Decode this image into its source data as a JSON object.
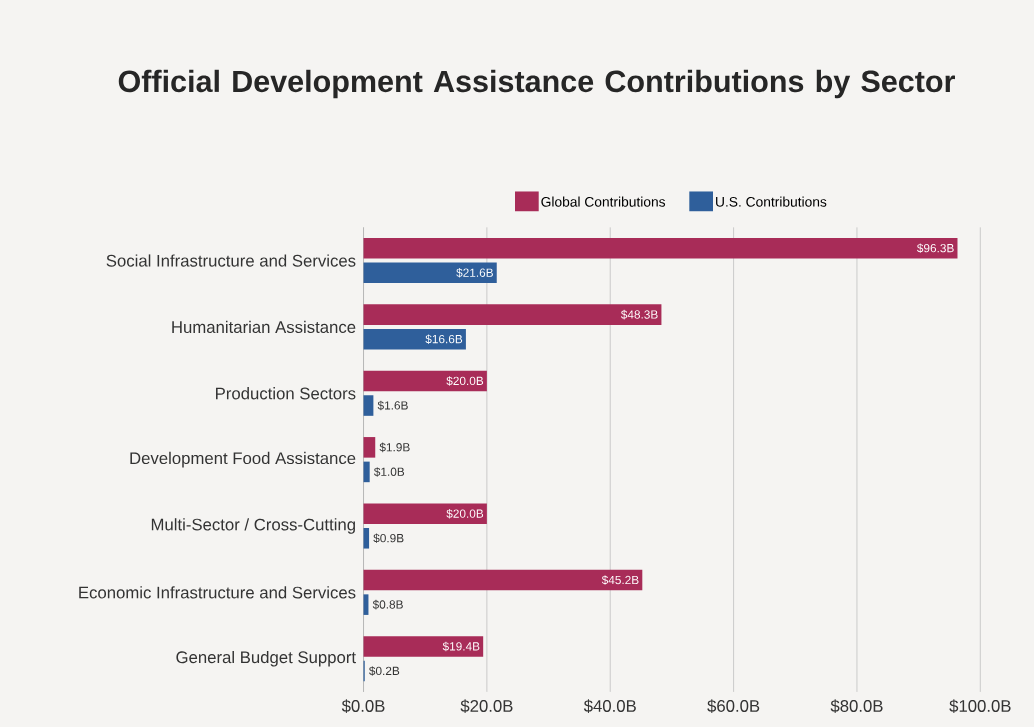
{
  "chart_data": {
    "type": "bar",
    "orientation": "horizontal",
    "title": "Official Development Assistance Contributions by Sector",
    "categories": [
      "Social Infrastructure and Services",
      "Humanitarian Assistance",
      "Production Sectors",
      "Development Food Assistance",
      "Multi-Sector / Cross-Cutting",
      "Economic Infrastructure and Services",
      "General Budget Support"
    ],
    "series": [
      {
        "name": "Global Contributions",
        "color": "#a82c58",
        "values": [
          96.3,
          48.3,
          20.0,
          1.9,
          20.0,
          45.2,
          19.4
        ],
        "value_labels": [
          "$96.3B",
          "$48.3B",
          "$20.0B",
          "$1.9B",
          "$20.0B",
          "$45.2B",
          "$19.4B"
        ]
      },
      {
        "name": "U.S. Contributions",
        "color": "#2f5f9b",
        "values": [
          21.6,
          16.6,
          1.6,
          1.0,
          0.9,
          0.8,
          0.2
        ],
        "value_labels": [
          "$21.6B",
          "$16.6B",
          "$1.6B",
          "$1.0B",
          "$0.9B",
          "$0.8B",
          "$0.2B"
        ]
      }
    ],
    "xlim": [
      0,
      100
    ],
    "xticks": [
      {
        "value": 0,
        "label": "$0.0B"
      },
      {
        "value": 20,
        "label": "$20.0B"
      },
      {
        "value": 40,
        "label": "$40.0B"
      },
      {
        "value": 60,
        "label": "$60.0B"
      },
      {
        "value": 80,
        "label": "$80.0B"
      },
      {
        "value": 100,
        "label": "$100.0B"
      }
    ],
    "grid": "x",
    "legend": "top"
  }
}
